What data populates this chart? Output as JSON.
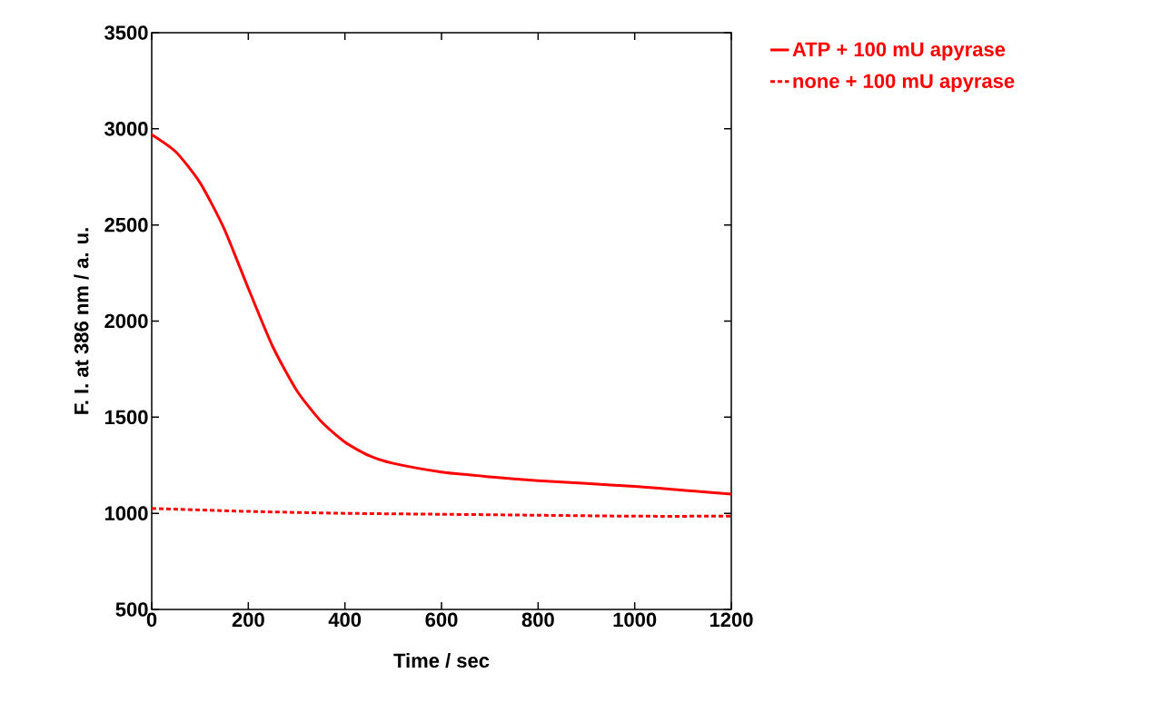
{
  "chart_data": {
    "type": "line",
    "xlabel": "Time / sec",
    "ylabel": "F. I. at 386 nm / a. u.",
    "xlim": [
      0,
      1200
    ],
    "ylim": [
      500,
      3500
    ],
    "xticks": [
      0,
      200,
      400,
      600,
      800,
      1000,
      1200
    ],
    "yticks": [
      500,
      1000,
      1500,
      2000,
      2500,
      3000,
      3500
    ],
    "grid": false,
    "legend": "top right",
    "marker": "none",
    "series": [
      {
        "name": "ATP + 100 mU apyrase",
        "color": "#ff0000",
        "line_style": "solid",
        "x": [
          0,
          50,
          100,
          150,
          200,
          250,
          300,
          350,
          400,
          450,
          500,
          600,
          700,
          800,
          900,
          1000,
          1100,
          1200
        ],
        "values": [
          2970,
          2880,
          2720,
          2480,
          2170,
          1870,
          1640,
          1480,
          1370,
          1300,
          1260,
          1215,
          1190,
          1170,
          1155,
          1140,
          1120,
          1100
        ]
      },
      {
        "name": "none + 100 mU apyrase",
        "color": "#ff0000",
        "line_style": "dashed",
        "x": [
          0,
          200,
          400,
          600,
          800,
          1000,
          1200
        ],
        "values": [
          1025,
          1010,
          1000,
          995,
          990,
          985,
          985
        ]
      }
    ]
  }
}
